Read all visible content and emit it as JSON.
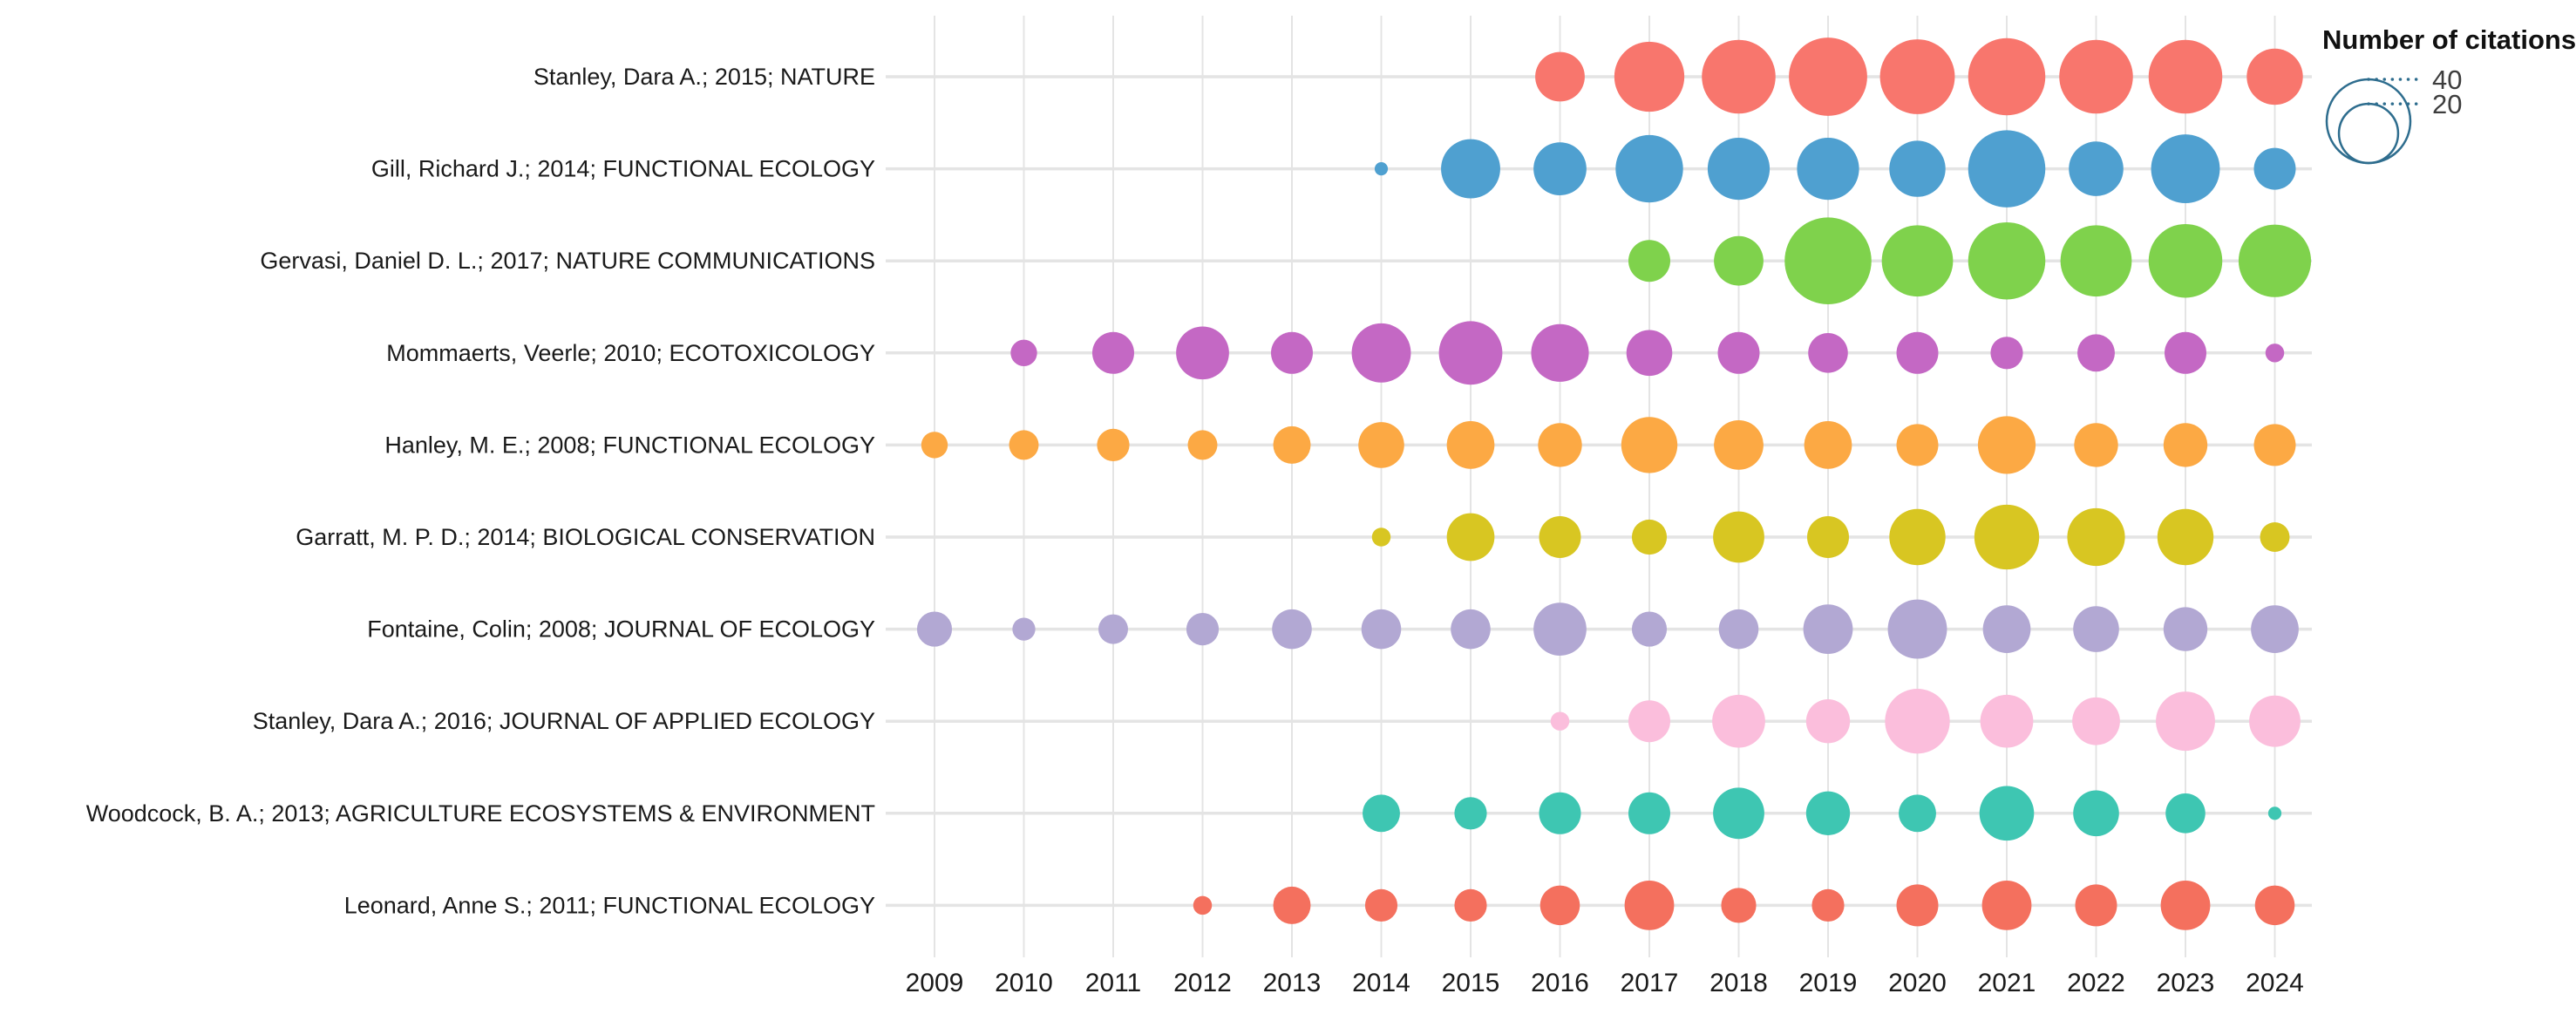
{
  "page": {
    "background": "#ffffff"
  },
  "legend": {
    "title": "Number of citations",
    "items": [
      {
        "label": "40",
        "value": 40
      },
      {
        "label": "20",
        "value": 20
      }
    ],
    "outline_color": "#2E6D8E",
    "text_color": "#3d3d3d"
  },
  "axis": {
    "grid_color": "#E4E4E4",
    "row_line_color": "#E4E4E4",
    "text_color": "#1a1a1a"
  },
  "chart_data": {
    "type": "scatter",
    "subtype": "bubble-matrix",
    "title": "",
    "xlabel": "",
    "ylabel": "",
    "size_legend_title": "Number of citations",
    "size_encoding": "bubble area proportional to number of citations",
    "size_legend_values": [
      40,
      20
    ],
    "x_ticks": [
      "2009",
      "2010",
      "2011",
      "2012",
      "2013",
      "2014",
      "2015",
      "2016",
      "2017",
      "2018",
      "2019",
      "2020",
      "2021",
      "2022",
      "2023",
      "2024"
    ],
    "grid": true,
    "series": [
      {
        "name": "Stanley, Dara A.; 2015; NATURE",
        "color": "#F8766D",
        "values": {
          "2016": 14,
          "2017": 28,
          "2018": 31,
          "2019": 35,
          "2020": 32,
          "2021": 34,
          "2022": 31,
          "2023": 31,
          "2024": 18
        }
      },
      {
        "name": "Gill, Richard J.; 2014; FUNCTIONAL ECOLOGY",
        "color": "#4FA0D0",
        "values": {
          "2014": 1,
          "2015": 20,
          "2016": 16,
          "2017": 26,
          "2018": 22,
          "2019": 22,
          "2020": 18,
          "2021": 34,
          "2022": 17,
          "2023": 27,
          "2024": 10
        }
      },
      {
        "name": "Gervasi, Daniel D. L.; 2017; NATURE COMMUNICATIONS",
        "color": "#7FD24C",
        "values": {
          "2017": 10,
          "2018": 14,
          "2019": 43,
          "2020": 29,
          "2021": 34,
          "2022": 29,
          "2023": 31,
          "2024": 30
        }
      },
      {
        "name": "Mommaerts, Veerle; 2010; ECOTOXICOLOGY",
        "color": "#C468C4",
        "values": {
          "2010": 4,
          "2011": 10,
          "2012": 16,
          "2013": 10,
          "2014": 20,
          "2015": 23,
          "2016": 19,
          "2017": 12,
          "2018": 10,
          "2019": 9,
          "2020": 10,
          "2021": 6,
          "2022": 8,
          "2023": 10,
          "2024": 2
        }
      },
      {
        "name": "Hanley, M. E.; 2008; FUNCTIONAL ECOLOGY",
        "color": "#FCA944",
        "values": {
          "2009": 4,
          "2010": 5,
          "2011": 6,
          "2012": 5,
          "2013": 8,
          "2014": 12,
          "2015": 13,
          "2016": 11,
          "2017": 18,
          "2018": 14,
          "2019": 13,
          "2020": 10,
          "2021": 19,
          "2022": 11,
          "2023": 11,
          "2024": 10
        }
      },
      {
        "name": "Garratt, M. P. D.; 2014; BIOLOGICAL CONSERVATION",
        "color": "#D8C622",
        "values": {
          "2014": 2,
          "2015": 13,
          "2016": 10,
          "2017": 7,
          "2018": 15,
          "2019": 10,
          "2020": 18,
          "2021": 24,
          "2022": 19,
          "2023": 18,
          "2024": 5
        }
      },
      {
        "name": "Fontaine, Colin; 2008; JOURNAL OF ECOLOGY",
        "color": "#B2A8D3",
        "values": {
          "2009": 7,
          "2010": 3,
          "2011": 5,
          "2012": 6,
          "2013": 9,
          "2014": 9,
          "2015": 9,
          "2016": 16,
          "2017": 7,
          "2018": 9,
          "2019": 14,
          "2020": 20,
          "2021": 13,
          "2022": 12,
          "2023": 11,
          "2024": 13
        }
      },
      {
        "name": "Stanley, Dara A.; 2016; JOURNAL OF APPLIED ECOLOGY",
        "color": "#FBBEDC",
        "values": {
          "2016": 2,
          "2017": 10,
          "2018": 16,
          "2019": 11,
          "2020": 24,
          "2021": 16,
          "2022": 13,
          "2023": 20,
          "2024": 15
        }
      },
      {
        "name": "Woodcock, B. A.; 2013; AGRICULTURE ECOSYSTEMS & ENVIRONMENT",
        "color": "#3EC6B2",
        "values": {
          "2014": 8,
          "2015": 6,
          "2016": 10,
          "2017": 10,
          "2018": 15,
          "2019": 11,
          "2020": 8,
          "2021": 17,
          "2022": 12,
          "2023": 9,
          "2024": 1
        }
      },
      {
        "name": "Leonard, Anne S.; 2011; FUNCTIONAL ECOLOGY",
        "color": "#F4705E",
        "values": {
          "2012": 2,
          "2013": 8,
          "2014": 6,
          "2015": 6,
          "2016": 9,
          "2017": 14,
          "2018": 7,
          "2019": 6,
          "2020": 10,
          "2021": 14,
          "2022": 10,
          "2023": 14,
          "2024": 9
        }
      }
    ]
  }
}
